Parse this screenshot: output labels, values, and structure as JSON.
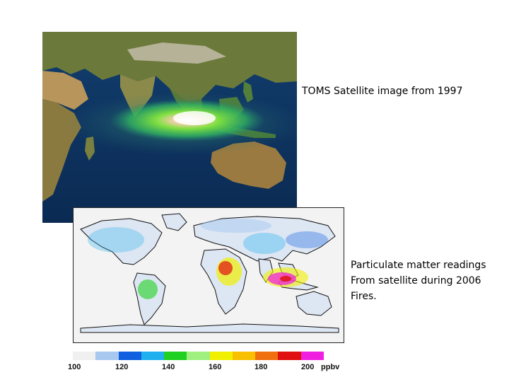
{
  "captions": {
    "toms": "TOMS Satellite image from 1997",
    "pm_line1": "Particulate matter readings",
    "pm_line2": "From satellite during 2006",
    "pm_line3": "Fires."
  },
  "colorbar": {
    "colors": [
      "#f0f0f0",
      "#a8c8f0",
      "#1060e0",
      "#20b0f0",
      "#20d020",
      "#a0f080",
      "#f0f000",
      "#f8c000",
      "#f07010",
      "#e01010",
      "#f020e0"
    ],
    "labels": [
      "100",
      "120",
      "140",
      "160",
      "180",
      "200"
    ],
    "unit": "ppbv"
  },
  "colors": {
    "ocean_dark": "#0a2f5e",
    "plume_green": "#30c050",
    "plume_core": "#ffffff"
  }
}
